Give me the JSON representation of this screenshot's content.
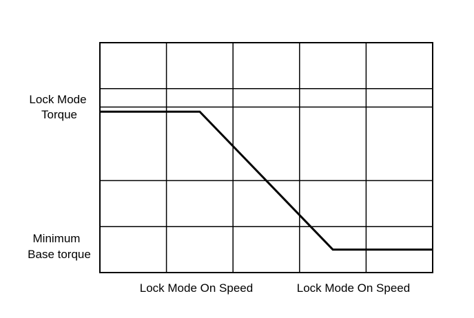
{
  "chart_data": {
    "type": "line",
    "title": "",
    "xlabel": "",
    "ylabel": "",
    "xlim": [
      0,
      5
    ],
    "ylim": [
      0,
      5
    ],
    "grid": true,
    "x_tick_labels": [
      {
        "x": 1.5,
        "label": "Lock Mode On Speed"
      },
      {
        "x": 3.9,
        "label": "Lock Mode On Speed"
      }
    ],
    "y_tick_labels": [
      {
        "y": 3.5,
        "lines": [
          "Lock Mode",
          "Torque"
        ]
      },
      {
        "y": 0.5,
        "lines": [
          "Minimum",
          "Base torque"
        ]
      }
    ],
    "series": [
      {
        "x": [
          0,
          1.5,
          3.5,
          5
        ],
        "y": [
          3.5,
          3.5,
          0.5,
          0.5
        ]
      }
    ],
    "x_gridlines": [
      1,
      2,
      3,
      4
    ],
    "y_gridlines": [
      1,
      2,
      3.6,
      4
    ],
    "colors": {
      "line": "#000000",
      "grid": "#000000",
      "background": "#ffffff"
    }
  }
}
